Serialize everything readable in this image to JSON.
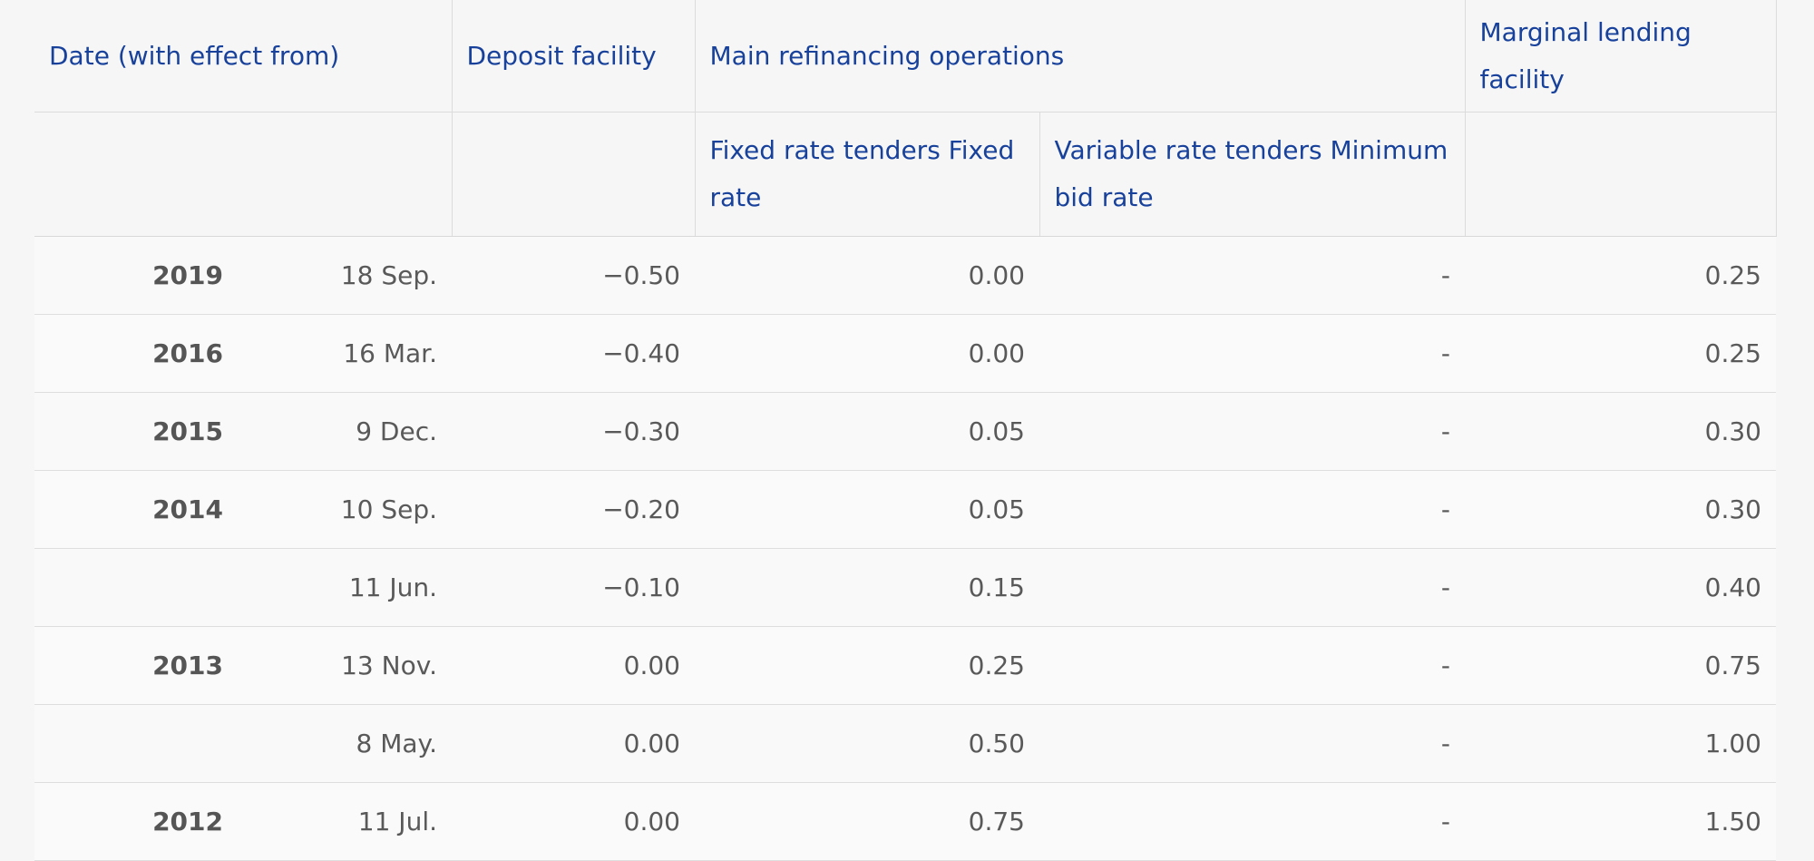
{
  "table": {
    "headers": {
      "date": "Date (with effect from)",
      "deposit": "Deposit facility",
      "mro": "Main refinancing operations",
      "mlf": "Marginal lending facility",
      "fixed": "Fixed rate tenders Fixed rate",
      "variable": "Variable rate tenders Minimum bid rate"
    },
    "rows": [
      {
        "year": "2019",
        "day": "18 Sep.",
        "deposit": "−0.50",
        "fixed": "0.00",
        "variable": "-",
        "mlf": "0.25"
      },
      {
        "year": "2016",
        "day": "16 Mar.",
        "deposit": "−0.40",
        "fixed": "0.00",
        "variable": "-",
        "mlf": "0.25"
      },
      {
        "year": "2015",
        "day": "9 Dec.",
        "deposit": "−0.30",
        "fixed": "0.05",
        "variable": "-",
        "mlf": "0.30"
      },
      {
        "year": "2014",
        "day": "10 Sep.",
        "deposit": "−0.20",
        "fixed": "0.05",
        "variable": "-",
        "mlf": "0.30"
      },
      {
        "year": "",
        "day": "11 Jun.",
        "deposit": "−0.10",
        "fixed": "0.15",
        "variable": "-",
        "mlf": "0.40"
      },
      {
        "year": "2013",
        "day": "13 Nov.",
        "deposit": "0.00",
        "fixed": "0.25",
        "variable": "-",
        "mlf": "0.75"
      },
      {
        "year": "",
        "day": "8 May.",
        "deposit": "0.00",
        "fixed": "0.50",
        "variable": "-",
        "mlf": "1.00"
      },
      {
        "year": "2012",
        "day": "11 Jul.",
        "deposit": "0.00",
        "fixed": "0.75",
        "variable": "-",
        "mlf": "1.50"
      }
    ]
  }
}
